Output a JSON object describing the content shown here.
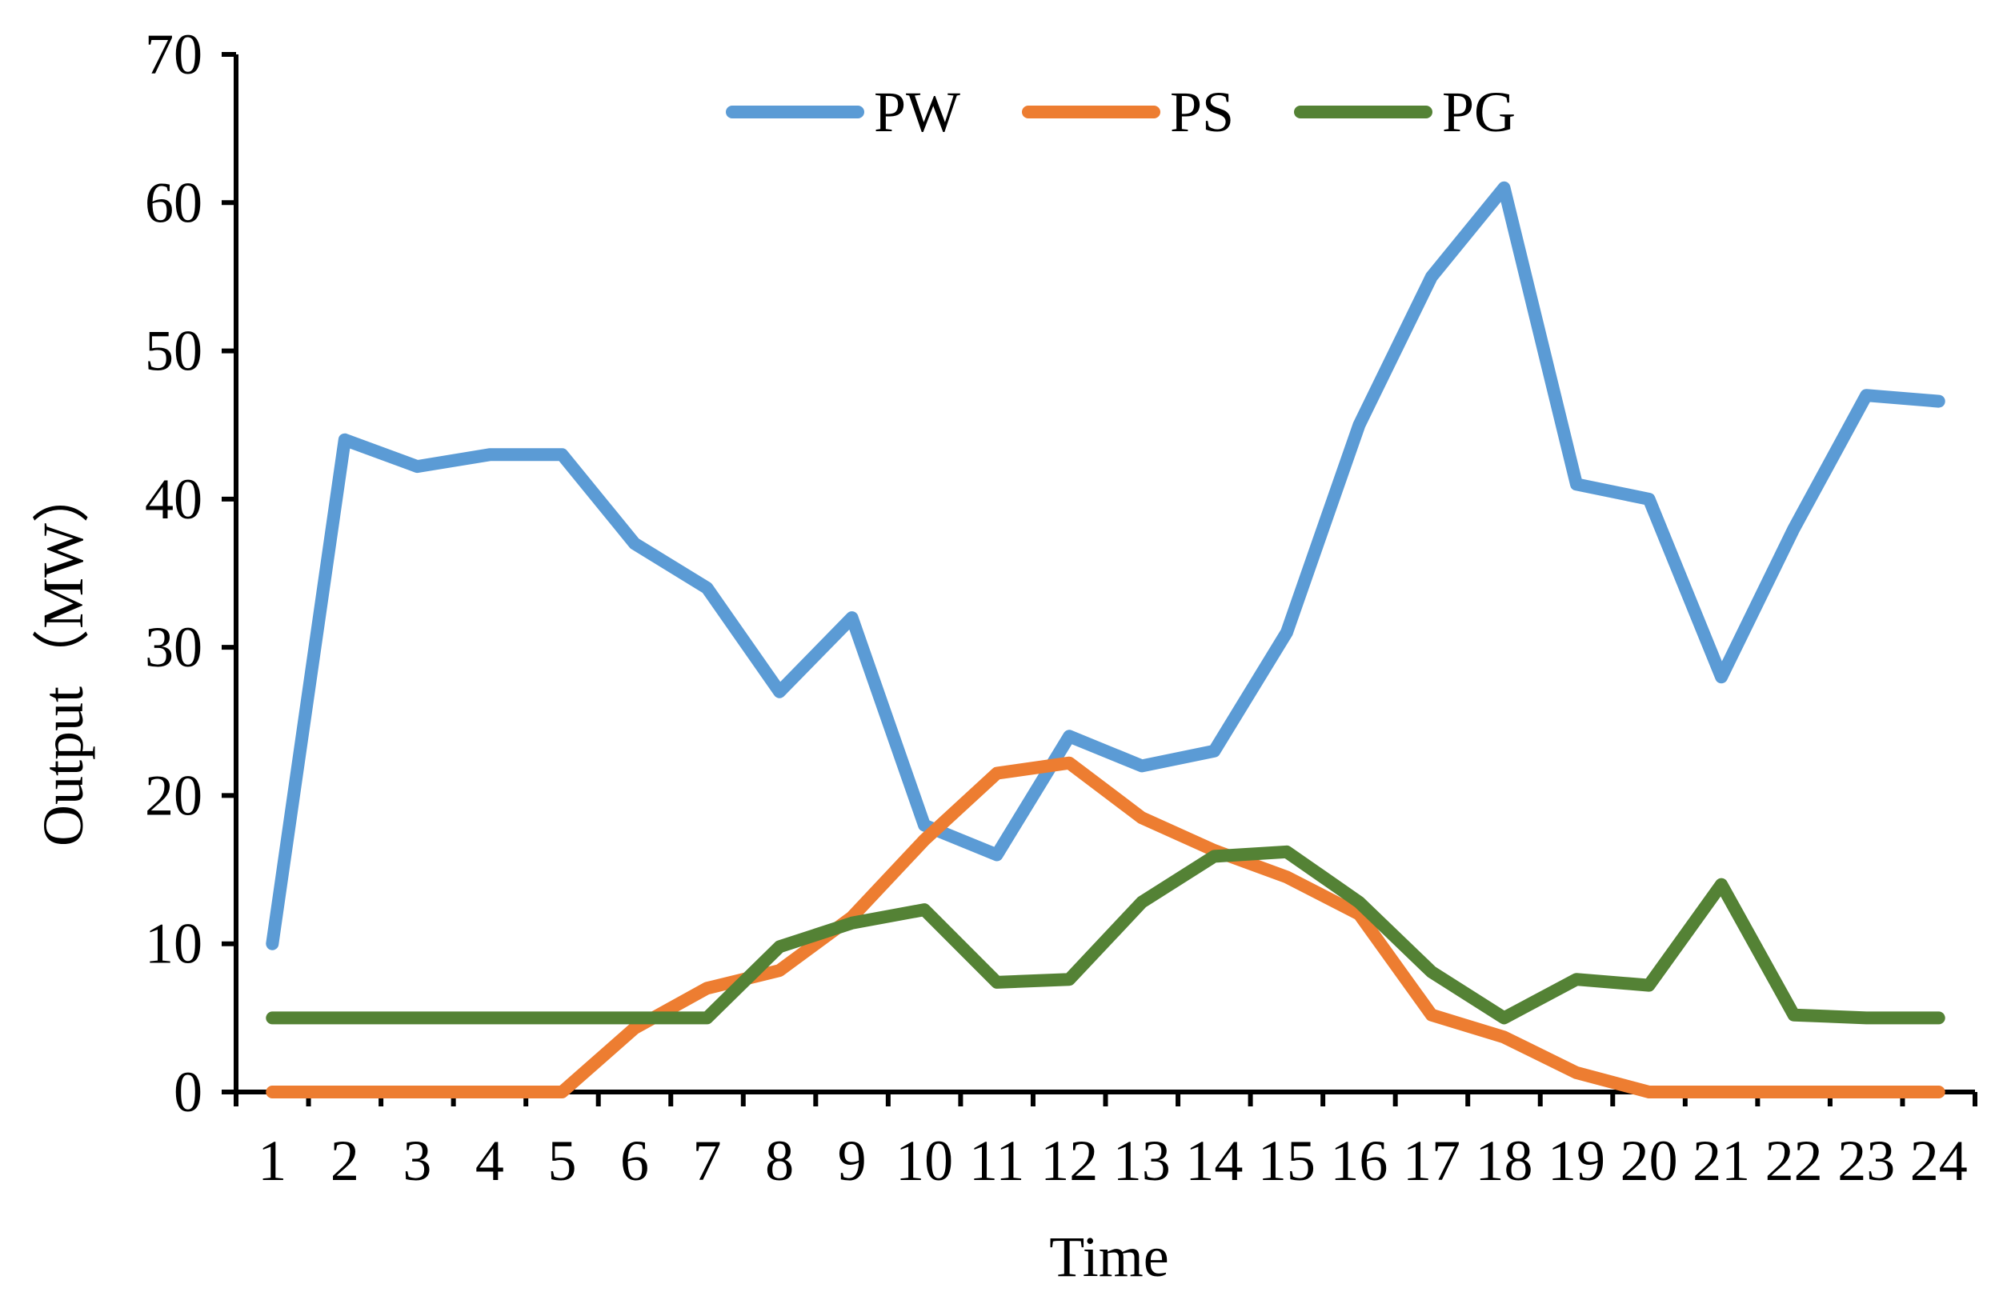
{
  "chart_data": {
    "type": "line",
    "title": "",
    "xlabel": "Time",
    "ylabel": "Output（MW）",
    "ylim": [
      0,
      70
    ],
    "yticks": [
      "0",
      "10",
      "20",
      "30",
      "40",
      "50",
      "60",
      "70"
    ],
    "categories": [
      "1",
      "2",
      "3",
      "4",
      "5",
      "6",
      "7",
      "8",
      "9",
      "10",
      "11",
      "12",
      "13",
      "14",
      "15",
      "16",
      "17",
      "18",
      "19",
      "20",
      "21",
      "22",
      "23",
      "24"
    ],
    "grid": false,
    "legend_position": "top-center",
    "series": [
      {
        "name": "PW",
        "color": "#5B9BD5",
        "values": [
          10,
          44,
          42.2,
          43,
          43,
          37,
          34,
          27,
          32,
          18,
          16,
          24,
          22,
          23,
          31,
          45,
          55,
          61,
          41,
          40,
          28,
          38,
          47,
          46.6
        ]
      },
      {
        "name": "PS",
        "color": "#ED7D31",
        "values": [
          0,
          0,
          0,
          0,
          0,
          4.3,
          7,
          8.2,
          11.8,
          17,
          21.5,
          22.2,
          18.5,
          16.3,
          14.5,
          12,
          5.2,
          3.7,
          1.3,
          0,
          0,
          0,
          0,
          0
        ]
      },
      {
        "name": "PG",
        "color": "#548235",
        "values": [
          5,
          5,
          5,
          5,
          5,
          5,
          5,
          9.8,
          11.4,
          12.3,
          7.4,
          7.6,
          12.8,
          15.9,
          16.2,
          12.8,
          8.1,
          5,
          7.6,
          7.2,
          14,
          5.2,
          5,
          5
        ]
      }
    ]
  }
}
